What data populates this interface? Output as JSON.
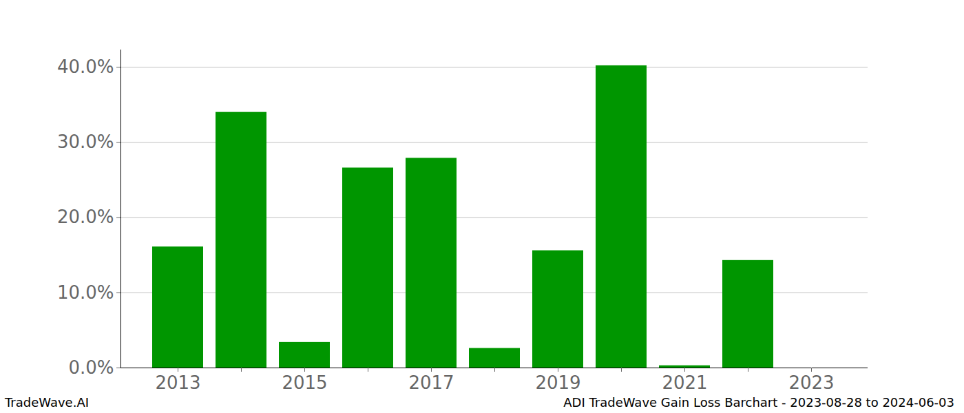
{
  "chart_data": {
    "type": "bar",
    "title": "ADI TradeWave Gain Loss Barchart - 2023-08-28 to 2024-06-03",
    "caption": "TradeWave.AI",
    "categories": [
      "2013",
      null,
      "2015",
      null,
      "2017",
      null,
      "2019",
      null,
      "2021",
      null,
      "2023"
    ],
    "values": [
      16.1,
      34.0,
      3.4,
      26.6,
      27.9,
      2.6,
      15.6,
      40.2,
      0.3,
      14.3,
      0
    ],
    "color": "#009600",
    "ylim": [
      0,
      42.3
    ],
    "yticks": [
      {
        "value": 0,
        "label": "0.0%"
      },
      {
        "value": 10,
        "label": "10.0%"
      },
      {
        "value": 20,
        "label": "20.0%"
      },
      {
        "value": 30,
        "label": "30.0%"
      },
      {
        "value": 40,
        "label": "40.0%"
      }
    ],
    "grid": true
  }
}
